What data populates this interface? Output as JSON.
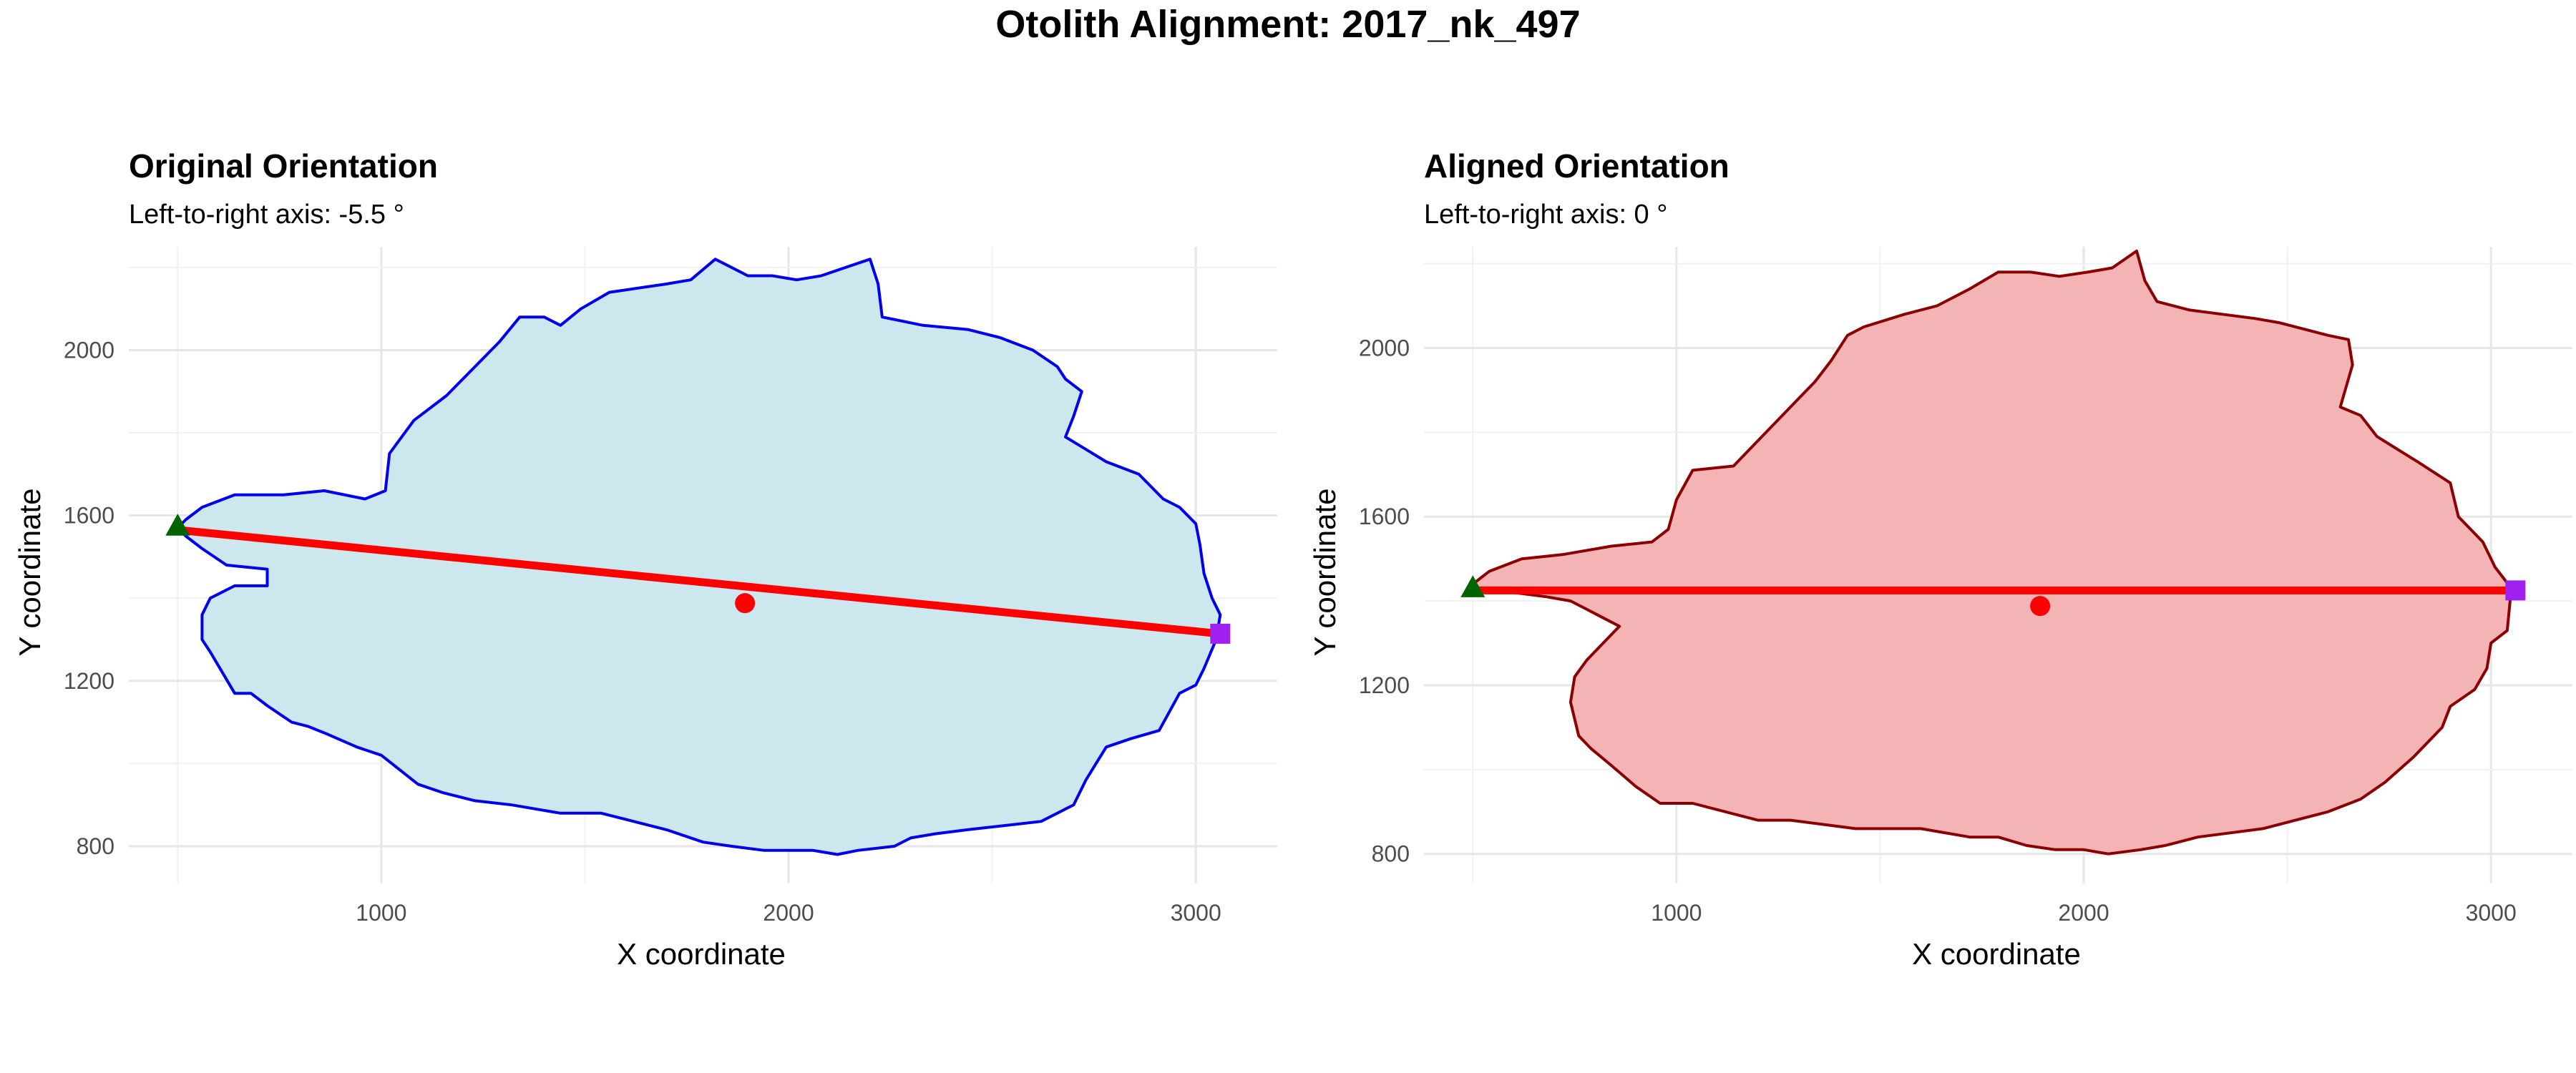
{
  "title": "Otolith Alignment: 2017_nk_497",
  "chart_data": [
    {
      "type": "scatter",
      "title": "Original Orientation",
      "subtitle": "Left-to-right axis: -5.5 °",
      "xlabel": "X coordinate",
      "ylabel": "Y coordinate",
      "xlim": [
        380,
        3200
      ],
      "ylim": [
        710,
        2250
      ],
      "x_ticks": [
        1000,
        2000,
        3000
      ],
      "y_ticks": [
        800,
        1200,
        1600,
        2000
      ],
      "grid": true,
      "outline_fill": "#cde7ee",
      "outline_stroke": "#0000ee",
      "outline": [
        [
          520,
          1590
        ],
        [
          560,
          1620
        ],
        [
          640,
          1650
        ],
        [
          760,
          1650
        ],
        [
          860,
          1660
        ],
        [
          960,
          1640
        ],
        [
          1010,
          1660
        ],
        [
          1020,
          1750
        ],
        [
          1080,
          1830
        ],
        [
          1160,
          1890
        ],
        [
          1220,
          1950
        ],
        [
          1290,
          2020
        ],
        [
          1340,
          2080
        ],
        [
          1400,
          2080
        ],
        [
          1440,
          2060
        ],
        [
          1490,
          2100
        ],
        [
          1560,
          2140
        ],
        [
          1700,
          2160
        ],
        [
          1760,
          2170
        ],
        [
          1820,
          2220
        ],
        [
          1900,
          2180
        ],
        [
          1960,
          2180
        ],
        [
          2020,
          2170
        ],
        [
          2080,
          2180
        ],
        [
          2140,
          2200
        ],
        [
          2200,
          2220
        ],
        [
          2220,
          2160
        ],
        [
          2230,
          2080
        ],
        [
          2330,
          2060
        ],
        [
          2440,
          2050
        ],
        [
          2520,
          2030
        ],
        [
          2600,
          2000
        ],
        [
          2660,
          1960
        ],
        [
          2680,
          1930
        ],
        [
          2720,
          1900
        ],
        [
          2700,
          1840
        ],
        [
          2680,
          1790
        ],
        [
          2780,
          1730
        ],
        [
          2860,
          1700
        ],
        [
          2920,
          1640
        ],
        [
          2960,
          1620
        ],
        [
          3000,
          1580
        ],
        [
          3010,
          1530
        ],
        [
          3020,
          1460
        ],
        [
          3040,
          1400
        ],
        [
          3060,
          1360
        ],
        [
          3050,
          1300
        ],
        [
          3020,
          1230
        ],
        [
          3000,
          1190
        ],
        [
          2960,
          1170
        ],
        [
          2910,
          1080
        ],
        [
          2840,
          1060
        ],
        [
          2780,
          1040
        ],
        [
          2730,
          960
        ],
        [
          2700,
          900
        ],
        [
          2620,
          860
        ],
        [
          2530,
          850
        ],
        [
          2440,
          840
        ],
        [
          2360,
          830
        ],
        [
          2300,
          820
        ],
        [
          2260,
          800
        ],
        [
          2170,
          790
        ],
        [
          2120,
          780
        ],
        [
          2060,
          790
        ],
        [
          2000,
          790
        ],
        [
          1940,
          790
        ],
        [
          1860,
          800
        ],
        [
          1790,
          810
        ],
        [
          1700,
          840
        ],
        [
          1620,
          860
        ],
        [
          1540,
          880
        ],
        [
          1440,
          880
        ],
        [
          1320,
          900
        ],
        [
          1230,
          910
        ],
        [
          1150,
          930
        ],
        [
          1090,
          950
        ],
        [
          1000,
          1020
        ],
        [
          940,
          1040
        ],
        [
          870,
          1070
        ],
        [
          820,
          1090
        ],
        [
          780,
          1100
        ],
        [
          720,
          1140
        ],
        [
          680,
          1170
        ],
        [
          640,
          1170
        ],
        [
          580,
          1270
        ],
        [
          560,
          1300
        ],
        [
          560,
          1360
        ],
        [
          580,
          1400
        ],
        [
          640,
          1430
        ],
        [
          720,
          1430
        ],
        [
          720,
          1470
        ],
        [
          620,
          1480
        ],
        [
          560,
          1520
        ],
        [
          520,
          1550
        ],
        [
          500,
          1570
        ]
      ],
      "axis_line": [
        [
          500,
          1565
        ],
        [
          3060,
          1314
        ]
      ],
      "start_marker": {
        "x": 500,
        "y": 1575,
        "shape": "triangle",
        "color": "#006400"
      },
      "end_marker": {
        "x": 3060,
        "y": 1314,
        "shape": "square",
        "color": "#a020f0"
      },
      "centroid": {
        "x": 1893,
        "y": 1388,
        "color": "#ff0000"
      },
      "line_color": "#ff0000"
    },
    {
      "type": "scatter",
      "title": "Aligned Orientation",
      "subtitle": "Left-to-right axis: 0 °",
      "xlabel": "X coordinate",
      "ylabel": "Y coordinate",
      "xlim": [
        380,
        3200
      ],
      "ylim": [
        730,
        2240
      ],
      "x_ticks": [
        1000,
        2000,
        3000
      ],
      "y_ticks": [
        800,
        1200,
        1600,
        2000
      ],
      "grid": true,
      "outline_fill": "#f4b3b4",
      "outline_stroke": "#8b0000",
      "outline": [
        [
          500,
          1440
        ],
        [
          540,
          1470
        ],
        [
          620,
          1500
        ],
        [
          720,
          1510
        ],
        [
          840,
          1530
        ],
        [
          940,
          1540
        ],
        [
          980,
          1570
        ],
        [
          1000,
          1640
        ],
        [
          1040,
          1710
        ],
        [
          1140,
          1720
        ],
        [
          1200,
          1780
        ],
        [
          1280,
          1860
        ],
        [
          1340,
          1920
        ],
        [
          1380,
          1970
        ],
        [
          1420,
          2030
        ],
        [
          1460,
          2050
        ],
        [
          1560,
          2080
        ],
        [
          1640,
          2100
        ],
        [
          1720,
          2140
        ],
        [
          1790,
          2180
        ],
        [
          1870,
          2180
        ],
        [
          1940,
          2170
        ],
        [
          2010,
          2180
        ],
        [
          2070,
          2190
        ],
        [
          2130,
          2230
        ],
        [
          2150,
          2160
        ],
        [
          2180,
          2110
        ],
        [
          2260,
          2090
        ],
        [
          2340,
          2080
        ],
        [
          2420,
          2070
        ],
        [
          2480,
          2060
        ],
        [
          2600,
          2030
        ],
        [
          2650,
          2020
        ],
        [
          2660,
          1960
        ],
        [
          2630,
          1860
        ],
        [
          2680,
          1840
        ],
        [
          2720,
          1790
        ],
        [
          2820,
          1730
        ],
        [
          2900,
          1680
        ],
        [
          2920,
          1600
        ],
        [
          2980,
          1540
        ],
        [
          3010,
          1480
        ],
        [
          3050,
          1430
        ],
        [
          3040,
          1330
        ],
        [
          3000,
          1300
        ],
        [
          2990,
          1240
        ],
        [
          2960,
          1190
        ],
        [
          2900,
          1150
        ],
        [
          2880,
          1100
        ],
        [
          2810,
          1030
        ],
        [
          2740,
          970
        ],
        [
          2680,
          930
        ],
        [
          2600,
          900
        ],
        [
          2520,
          880
        ],
        [
          2440,
          860
        ],
        [
          2360,
          850
        ],
        [
          2280,
          840
        ],
        [
          2200,
          820
        ],
        [
          2140,
          810
        ],
        [
          2060,
          800
        ],
        [
          2000,
          810
        ],
        [
          1930,
          810
        ],
        [
          1860,
          820
        ],
        [
          1790,
          840
        ],
        [
          1720,
          840
        ],
        [
          1600,
          860
        ],
        [
          1520,
          860
        ],
        [
          1440,
          860
        ],
        [
          1360,
          870
        ],
        [
          1280,
          880
        ],
        [
          1200,
          880
        ],
        [
          1120,
          900
        ],
        [
          1040,
          920
        ],
        [
          960,
          920
        ],
        [
          900,
          960
        ],
        [
          840,
          1010
        ],
        [
          790,
          1050
        ],
        [
          760,
          1080
        ],
        [
          740,
          1160
        ],
        [
          750,
          1220
        ],
        [
          780,
          1260
        ],
        [
          830,
          1310
        ],
        [
          860,
          1340
        ],
        [
          820,
          1360
        ],
        [
          780,
          1380
        ],
        [
          740,
          1400
        ],
        [
          680,
          1410
        ],
        [
          600,
          1420
        ],
        [
          520,
          1425
        ]
      ],
      "axis_line": [
        [
          500,
          1425
        ],
        [
          3060,
          1425
        ]
      ],
      "start_marker": {
        "x": 500,
        "y": 1432,
        "shape": "triangle",
        "color": "#006400"
      },
      "end_marker": {
        "x": 3060,
        "y": 1425,
        "shape": "square",
        "color": "#a020f0"
      },
      "centroid": {
        "x": 1893,
        "y": 1388,
        "color": "#ff0000"
      },
      "line_color": "#ff0000"
    }
  ]
}
